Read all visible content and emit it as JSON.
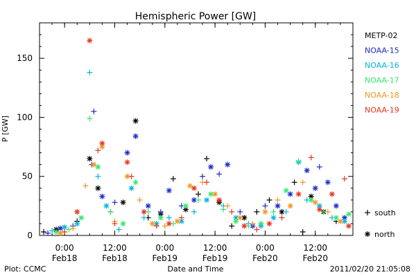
{
  "chart_data": {
    "type": "scatter",
    "title": "Hemispheric Power [GW]",
    "ylabel": "P [GW]",
    "xlabel": "Date and Time",
    "ylim": [
      0,
      180
    ],
    "yticks": [
      0,
      50,
      100,
      150
    ],
    "xlim": [
      "2011-02-17T18:00",
      "2011-02-20T21:00"
    ],
    "xticks": [
      {
        "t": "2011-02-18T00:00",
        "line1": "0:00",
        "line2": "Feb18"
      },
      {
        "t": "2011-02-18T12:00",
        "line1": "12:00",
        "line2": "Feb18"
      },
      {
        "t": "2011-02-19T00:00",
        "line1": "0:00",
        "line2": "Feb19"
      },
      {
        "t": "2011-02-19T12:00",
        "line1": "12:00",
        "line2": "Feb19"
      },
      {
        "t": "2011-02-20T00:00",
        "line1": "0:00",
        "line2": "Feb20"
      },
      {
        "t": "2011-02-20T12:00",
        "line1": "12:00",
        "line2": "Feb20"
      }
    ],
    "grid": false,
    "legend_position": "right",
    "series": [
      {
        "name": "METP-02",
        "color": "#000000",
        "points": [
          [
            "2011-02-17T19:00",
            3,
            "s"
          ],
          [
            "2011-02-17T22:00",
            5,
            "n"
          ],
          [
            "2011-02-18T03:00",
            12,
            "s"
          ],
          [
            "2011-02-18T06:00",
            65,
            "n"
          ],
          [
            "2011-02-18T08:00",
            40,
            "n"
          ],
          [
            "2011-02-18T11:00",
            20,
            "s"
          ],
          [
            "2011-02-18T14:00",
            28,
            "n"
          ],
          [
            "2011-02-18T17:00",
            97,
            "n"
          ],
          [
            "2011-02-18T20:00",
            15,
            "s"
          ],
          [
            "2011-02-18T23:00",
            18,
            "n"
          ],
          [
            "2011-02-19T02:00",
            48,
            "s"
          ],
          [
            "2011-02-19T05:00",
            22,
            "n"
          ],
          [
            "2011-02-19T08:00",
            35,
            "s"
          ],
          [
            "2011-02-19T10:00",
            65,
            "s"
          ],
          [
            "2011-02-19T13:00",
            28,
            "n"
          ],
          [
            "2011-02-19T16:00",
            8,
            "s"
          ],
          [
            "2011-02-19T19:00",
            15,
            "n"
          ],
          [
            "2011-02-19T22:00",
            20,
            "s"
          ],
          [
            "2011-02-20T01:00",
            30,
            "s"
          ],
          [
            "2011-02-20T04:00",
            20,
            "n"
          ],
          [
            "2011-02-20T07:00",
            45,
            "s"
          ],
          [
            "2011-02-20T09:00",
            3,
            "s"
          ],
          [
            "2011-02-20T11:00",
            33,
            "n"
          ],
          [
            "2011-02-20T14:00",
            20,
            "n"
          ],
          [
            "2011-02-20T17:00",
            12,
            "s"
          ]
        ]
      },
      {
        "name": "NOAA-15",
        "color": "#1e28c8",
        "points": [
          [
            "2011-02-17T20:00",
            2,
            "s"
          ],
          [
            "2011-02-17T23:00",
            6,
            "n"
          ],
          [
            "2011-02-18T02:00",
            8,
            "s"
          ],
          [
            "2011-02-18T06:30",
            60,
            "s"
          ],
          [
            "2011-02-18T07:00",
            105,
            "s"
          ],
          [
            "2011-02-18T09:00",
            33,
            "n"
          ],
          [
            "2011-02-18T12:00",
            28,
            "s"
          ],
          [
            "2011-02-18T15:00",
            70,
            "n"
          ],
          [
            "2011-02-18T17:00",
            84,
            "n"
          ],
          [
            "2011-02-18T20:00",
            25,
            "n"
          ],
          [
            "2011-02-18T23:00",
            20,
            "s"
          ],
          [
            "2011-02-19T01:00",
            38,
            "n"
          ],
          [
            "2011-02-19T04:00",
            25,
            "s"
          ],
          [
            "2011-02-19T07:00",
            30,
            "n"
          ],
          [
            "2011-02-19T09:00",
            50,
            "s"
          ],
          [
            "2011-02-19T11:00",
            58,
            "n"
          ],
          [
            "2011-02-19T13:00",
            52,
            "s"
          ],
          [
            "2011-02-19T15:00",
            60,
            "n"
          ],
          [
            "2011-02-19T18:00",
            20,
            "s"
          ],
          [
            "2011-02-19T21:00",
            8,
            "n"
          ],
          [
            "2011-02-20T00:00",
            25,
            "s"
          ],
          [
            "2011-02-20T03:00",
            25,
            "n"
          ],
          [
            "2011-02-20T06:00",
            35,
            "n"
          ],
          [
            "2011-02-20T10:00",
            55,
            "n"
          ],
          [
            "2011-02-20T12:00",
            40,
            "n"
          ],
          [
            "2011-02-20T13:00",
            58,
            "s"
          ],
          [
            "2011-02-20T15:00",
            45,
            "n"
          ],
          [
            "2011-02-20T17:00",
            25,
            "n"
          ],
          [
            "2011-02-20T19:00",
            15,
            "n"
          ]
        ]
      },
      {
        "name": "NOAA-16",
        "color": "#00b4dc",
        "points": [
          [
            "2011-02-17T21:00",
            4,
            "s"
          ],
          [
            "2011-02-18T00:00",
            7,
            "n"
          ],
          [
            "2011-02-18T03:00",
            10,
            "n"
          ],
          [
            "2011-02-18T06:00",
            138,
            "s"
          ],
          [
            "2011-02-18T08:00",
            50,
            "s"
          ],
          [
            "2011-02-18T10:00",
            25,
            "n"
          ],
          [
            "2011-02-18T13:00",
            5,
            "s"
          ],
          [
            "2011-02-18T16:00",
            40,
            "n"
          ],
          [
            "2011-02-18T19:00",
            15,
            "s"
          ],
          [
            "2011-02-18T22:00",
            10,
            "n"
          ],
          [
            "2011-02-19T01:00",
            15,
            "s"
          ],
          [
            "2011-02-19T04:00",
            12,
            "n"
          ],
          [
            "2011-02-19T07:00",
            20,
            "s"
          ],
          [
            "2011-02-19T10:00",
            30,
            "n"
          ],
          [
            "2011-02-19T14:00",
            25,
            "s"
          ],
          [
            "2011-02-19T17:00",
            15,
            "n"
          ],
          [
            "2011-02-19T20:00",
            10,
            "s"
          ],
          [
            "2011-02-19T23:00",
            8,
            "n"
          ],
          [
            "2011-02-20T02:00",
            15,
            "n"
          ],
          [
            "2011-02-20T05:00",
            20,
            "s"
          ],
          [
            "2011-02-20T08:00",
            62,
            "n"
          ],
          [
            "2011-02-20T10:00",
            30,
            "s"
          ],
          [
            "2011-02-20T13:00",
            25,
            "n"
          ],
          [
            "2011-02-20T16:00",
            15,
            "s"
          ],
          [
            "2011-02-20T19:00",
            12,
            "n"
          ]
        ]
      },
      {
        "name": "NOAA-17",
        "color": "#32e66e",
        "points": [
          [
            "2011-02-17T22:00",
            3,
            "n"
          ],
          [
            "2011-02-18T01:00",
            5,
            "s"
          ],
          [
            "2011-02-18T04:00",
            15,
            "n"
          ],
          [
            "2011-02-18T06:00",
            99,
            "s"
          ],
          [
            "2011-02-18T08:00",
            58,
            "n"
          ],
          [
            "2011-02-18T11:00",
            20,
            "s"
          ],
          [
            "2011-02-18T14:00",
            10,
            "n"
          ],
          [
            "2011-02-18T17:00",
            45,
            "n"
          ],
          [
            "2011-02-18T20:00",
            20,
            "s"
          ],
          [
            "2011-02-18T23:00",
            15,
            "n"
          ],
          [
            "2011-02-19T02:00",
            10,
            "s"
          ],
          [
            "2011-02-19T05:00",
            25,
            "n"
          ],
          [
            "2011-02-19T08:00",
            30,
            "s"
          ],
          [
            "2011-02-19T11:00",
            35,
            "n"
          ],
          [
            "2011-02-19T14:00",
            22,
            "s"
          ],
          [
            "2011-02-19T17:00",
            12,
            "n"
          ],
          [
            "2011-02-19T20:00",
            8,
            "s"
          ],
          [
            "2011-02-19T23:00",
            10,
            "n"
          ],
          [
            "2011-02-20T02:00",
            20,
            "s"
          ],
          [
            "2011-02-20T05:00",
            38,
            "n"
          ],
          [
            "2011-02-20T08:00",
            63,
            "s"
          ],
          [
            "2011-02-20T11:00",
            30,
            "n"
          ],
          [
            "2011-02-20T14:00",
            20,
            "s"
          ],
          [
            "2011-02-20T17:00",
            15,
            "n"
          ],
          [
            "2011-02-20T20:00",
            18,
            "n"
          ]
        ]
      },
      {
        "name": "NOAA-18",
        "color": "#f0961e",
        "points": [
          [
            "2011-02-17T23:00",
            2,
            "n"
          ],
          [
            "2011-02-18T02:00",
            6,
            "s"
          ],
          [
            "2011-02-18T05:00",
            42,
            "s"
          ],
          [
            "2011-02-18T07:00",
            60,
            "n"
          ],
          [
            "2011-02-18T09:00",
            75,
            "n"
          ],
          [
            "2011-02-18T12:00",
            12,
            "s"
          ],
          [
            "2011-02-18T15:00",
            50,
            "n"
          ],
          [
            "2011-02-18T18:00",
            30,
            "s"
          ],
          [
            "2011-02-18T21:00",
            10,
            "n"
          ],
          [
            "2011-02-19T00:00",
            8,
            "s"
          ],
          [
            "2011-02-19T03:00",
            12,
            "n"
          ],
          [
            "2011-02-19T06:00",
            42,
            "n"
          ],
          [
            "2011-02-19T09:00",
            45,
            "s"
          ],
          [
            "2011-02-19T12:00",
            35,
            "n"
          ],
          [
            "2011-02-19T15:00",
            25,
            "s"
          ],
          [
            "2011-02-19T18:00",
            15,
            "n"
          ],
          [
            "2011-02-19T21:00",
            10,
            "s"
          ],
          [
            "2011-02-20T00:00",
            20,
            "n"
          ],
          [
            "2011-02-20T03:00",
            30,
            "s"
          ],
          [
            "2011-02-20T06:00",
            25,
            "n"
          ],
          [
            "2011-02-20T09:00",
            45,
            "s"
          ],
          [
            "2011-02-20T12:00",
            28,
            "n"
          ],
          [
            "2011-02-20T15:00",
            20,
            "s"
          ],
          [
            "2011-02-20T18:00",
            12,
            "n"
          ]
        ]
      },
      {
        "name": "NOAA-19",
        "color": "#e6321e",
        "points": [
          [
            "2011-02-18T00:00",
            3,
            "s"
          ],
          [
            "2011-02-18T03:00",
            20,
            "n"
          ],
          [
            "2011-02-18T06:00",
            165,
            "n"
          ],
          [
            "2011-02-18T08:00",
            72,
            "s"
          ],
          [
            "2011-02-18T09:00",
            78,
            "n"
          ],
          [
            "2011-02-18T12:00",
            10,
            "s"
          ],
          [
            "2011-02-18T15:00",
            62,
            "n"
          ],
          [
            "2011-02-18T16:00",
            50,
            "s"
          ],
          [
            "2011-02-18T19:00",
            20,
            "n"
          ],
          [
            "2011-02-18T22:00",
            8,
            "s"
          ],
          [
            "2011-02-19T01:00",
            10,
            "n"
          ],
          [
            "2011-02-19T04:00",
            15,
            "s"
          ],
          [
            "2011-02-19T07:00",
            40,
            "n"
          ],
          [
            "2011-02-19T10:00",
            45,
            "s"
          ],
          [
            "2011-02-19T13:00",
            30,
            "n"
          ],
          [
            "2011-02-19T16:00",
            20,
            "s"
          ],
          [
            "2011-02-19T19:00",
            8,
            "n"
          ],
          [
            "2011-02-19T22:00",
            5,
            "s"
          ],
          [
            "2011-02-20T01:00",
            10,
            "n"
          ],
          [
            "2011-02-20T04:00",
            15,
            "s"
          ],
          [
            "2011-02-20T08:00",
            35,
            "n"
          ],
          [
            "2011-02-20T11:00",
            66,
            "s"
          ],
          [
            "2011-02-20T13:00",
            22,
            "n"
          ],
          [
            "2011-02-20T16:00",
            35,
            "n"
          ],
          [
            "2011-02-20T19:00",
            48,
            "s"
          ],
          [
            "2011-02-20T20:00",
            8,
            "n"
          ]
        ]
      }
    ],
    "marker_legend": [
      {
        "symbol": "+",
        "label": "south",
        "key": "s"
      },
      {
        "symbol": "*",
        "label": "north",
        "key": "n"
      }
    ],
    "footer_left": "Plot: CCMC",
    "footer_right": "2011/02/20 21:05:08"
  }
}
